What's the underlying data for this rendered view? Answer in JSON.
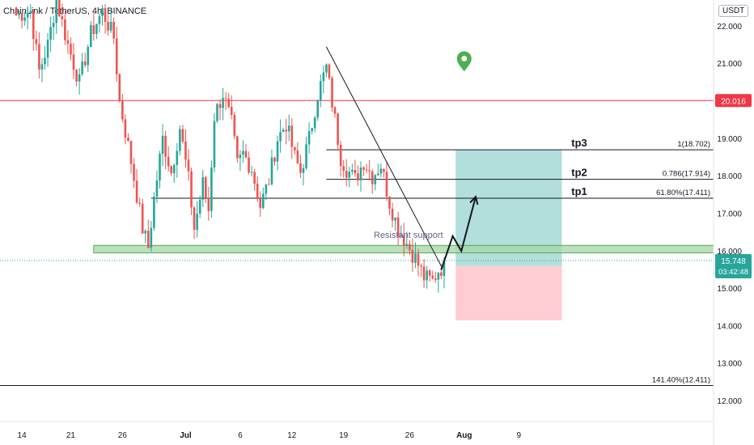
{
  "header": {
    "symbol_label": "ChainLink / TetherUS, 4h, BINANCE",
    "unit_label": "USDT"
  },
  "colors": {
    "up": "#26a69a",
    "down": "#ef5350",
    "resistance_line": "#f23645",
    "support_zone_fill": "#a5d6a7",
    "support_zone_border": "#4caf50",
    "target_zone": "#b2dfdb",
    "stop_zone": "#ffcdd2",
    "price_tag": "#26a69a"
  },
  "chart_data": {
    "type": "candlestick",
    "ylim": [
      11.45,
      22.7
    ],
    "y_ticks": [
      12.0,
      13.0,
      14.0,
      15.0,
      16.0,
      17.0,
      18.0,
      19.0,
      20.0,
      21.0,
      22.0
    ],
    "y_tick_labels": [
      "12.000",
      "13.000",
      "14.000",
      "15.000",
      "16.000",
      "17.000",
      "18.000",
      "19.000",
      "20.000",
      "21.000",
      "22.000"
    ],
    "x_ticks": [
      "14",
      "21",
      "26",
      "Jul",
      "6",
      "12",
      "19",
      "26",
      "Aug",
      "9"
    ],
    "x_tick_bold": [
      false,
      false,
      false,
      true,
      false,
      false,
      false,
      false,
      true,
      false
    ],
    "x_tick_bar": [
      2,
      19,
      37,
      59,
      78,
      96,
      114,
      137,
      156,
      175
    ],
    "bar_count": 186,
    "price_anchors": [
      [
        0,
        22.3
      ],
      [
        5,
        22.4
      ],
      [
        8,
        20.8
      ],
      [
        11,
        21.5
      ],
      [
        14,
        22.7
      ],
      [
        18,
        21.5
      ],
      [
        22,
        20.5
      ],
      [
        26,
        21.8
      ],
      [
        30,
        22.4
      ],
      [
        34,
        21.7
      ],
      [
        36,
        20.0
      ],
      [
        40,
        18.4
      ],
      [
        44,
        16.6
      ],
      [
        46,
        16.1
      ],
      [
        48,
        17.4
      ],
      [
        51,
        19.0
      ],
      [
        54,
        18.1
      ],
      [
        57,
        19.3
      ],
      [
        60,
        17.9
      ],
      [
        62,
        16.6
      ],
      [
        65,
        17.8
      ],
      [
        67,
        17.1
      ],
      [
        69,
        19.6
      ],
      [
        72,
        20.2
      ],
      [
        75,
        19.4
      ],
      [
        77,
        18.3
      ],
      [
        79,
        18.6
      ],
      [
        82,
        18.2
      ],
      [
        85,
        17.2
      ],
      [
        88,
        17.9
      ],
      [
        91,
        19.0
      ],
      [
        94,
        19.4
      ],
      [
        97,
        18.5
      ],
      [
        99,
        18.1
      ],
      [
        102,
        19.0
      ],
      [
        105,
        20.2
      ],
      [
        108,
        20.9
      ],
      [
        111,
        19.5
      ],
      [
        113,
        18.5
      ],
      [
        115,
        18.2
      ],
      [
        118,
        17.9
      ],
      [
        121,
        18.4
      ],
      [
        124,
        18.0
      ],
      [
        127,
        18.3
      ],
      [
        130,
        17.3
      ],
      [
        133,
        16.6
      ],
      [
        136,
        16.2
      ],
      [
        139,
        15.8
      ],
      [
        142,
        15.3
      ],
      [
        145,
        15.2
      ],
      [
        147,
        15.5
      ],
      [
        149,
        15.6
      ]
    ],
    "last_price": "15.748",
    "countdown": "03:42:48",
    "resistance": {
      "price": 20.016,
      "label": "20.016"
    },
    "support_zone": {
      "top": 16.15,
      "bottom": 15.95,
      "start_bar": 27
    },
    "label_resistant_support": "Resistant support",
    "trendline": {
      "start": [
        108,
        21.45
      ],
      "end": [
        148,
        15.6
      ]
    },
    "fib_levels": [
      {
        "tag": "tp3",
        "ratio_label": "1(18.702)",
        "price": 18.702,
        "start_bar": 108
      },
      {
        "tag": "tp2",
        "ratio_label": "0.786(17.914)",
        "price": 17.914,
        "start_bar": 108
      },
      {
        "tag": "tp1",
        "ratio_label": "61.80%(17.411)",
        "price": 17.411,
        "start_bar": 47
      },
      {
        "tag": "",
        "ratio_label": "141.40%(12.411)",
        "price": 12.411,
        "start_bar": -10
      }
    ],
    "position": {
      "entry": 15.6,
      "target": 18.7,
      "stop": 14.15,
      "start_bar": 153,
      "end_bar": 190
    },
    "projection_path": [
      [
        148,
        15.5
      ],
      [
        152,
        16.4
      ],
      [
        155,
        16.0
      ],
      [
        160,
        17.45
      ]
    ],
    "event_marker": {
      "bar": 156,
      "price": 21.05
    }
  }
}
